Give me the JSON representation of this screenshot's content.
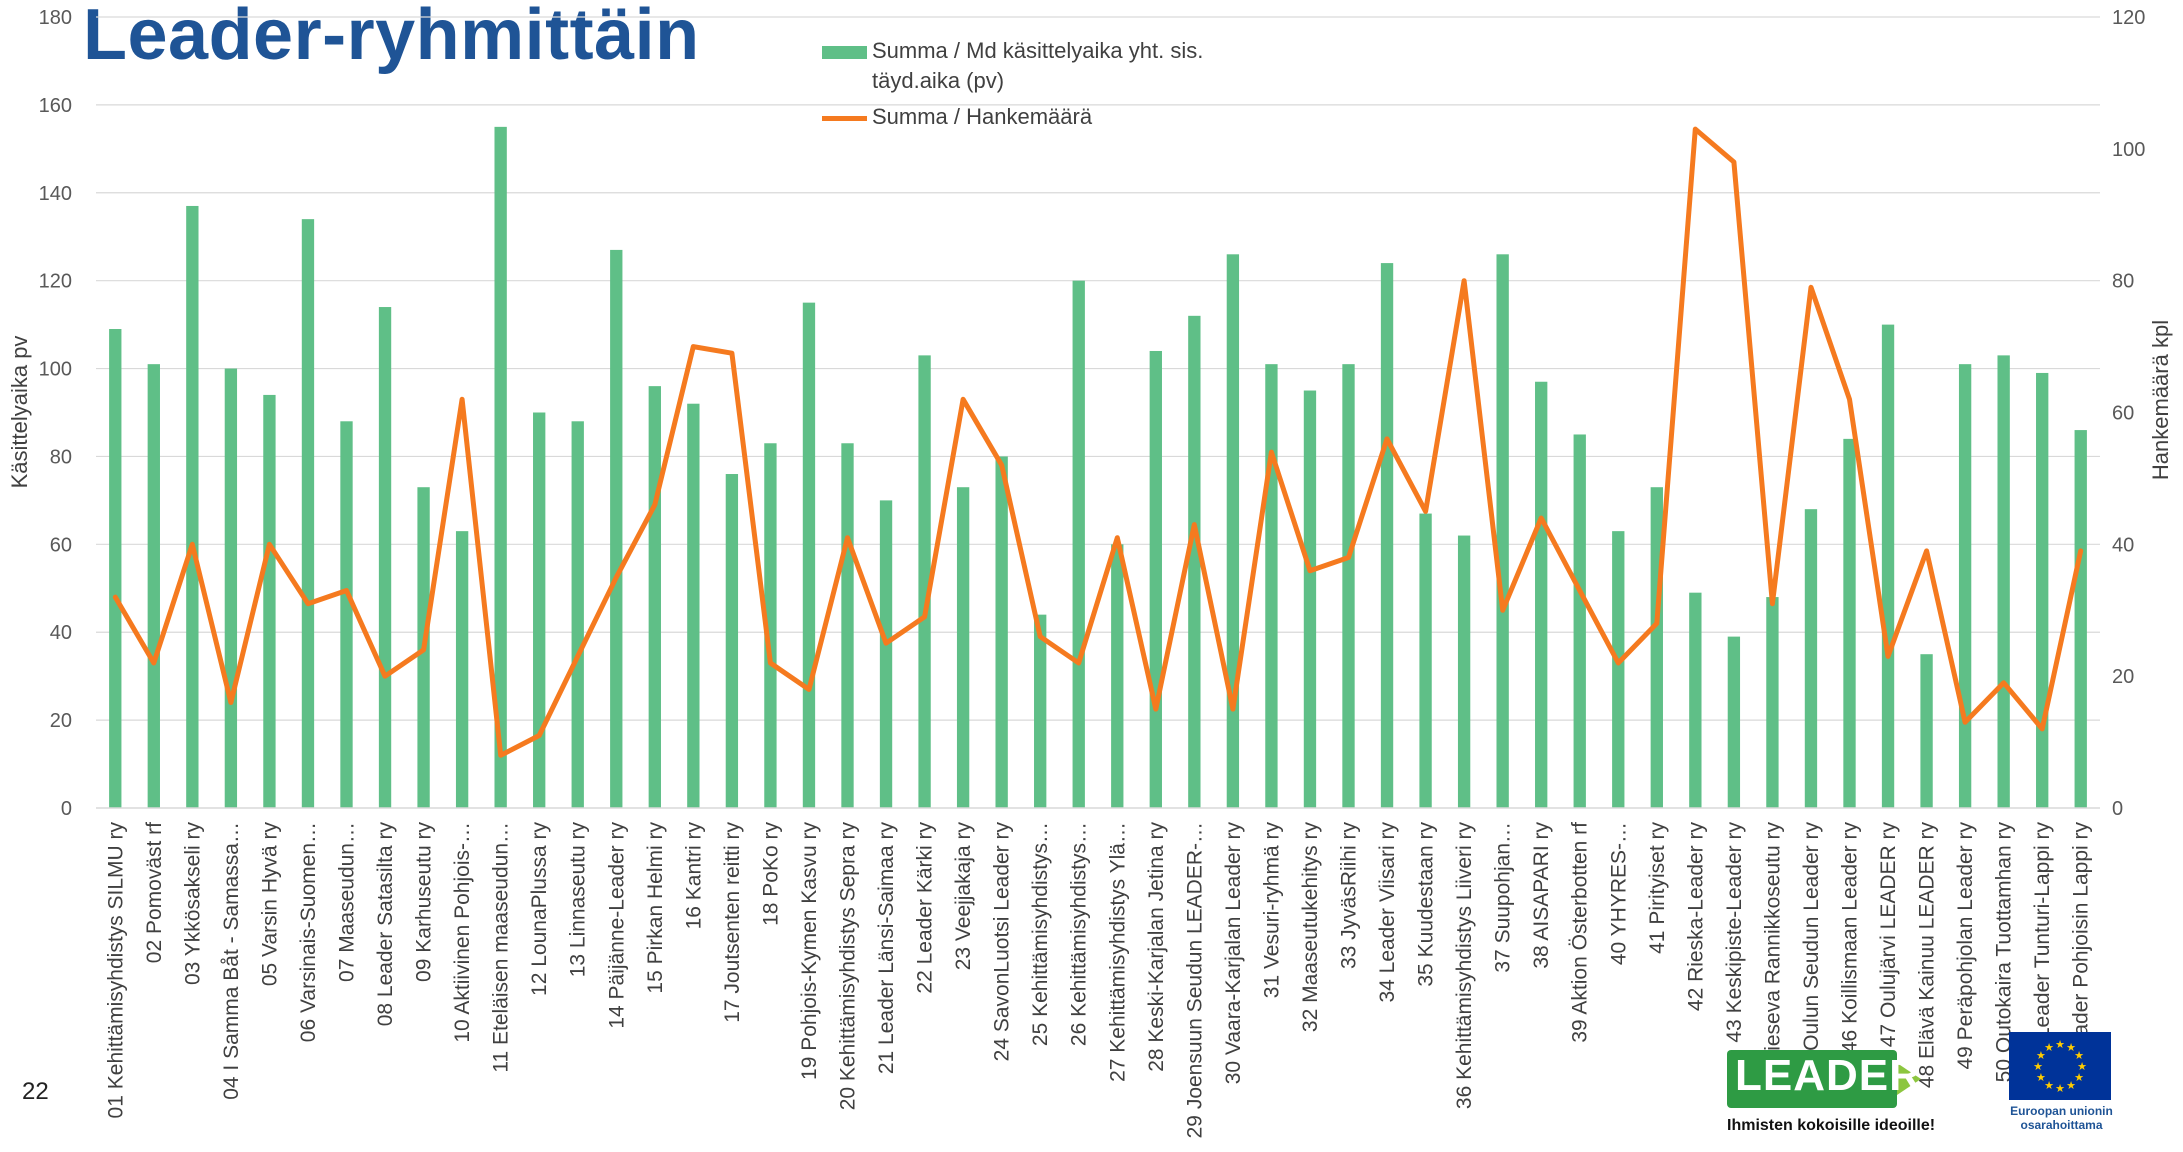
{
  "slide": {
    "title": "Leader-ryhmittäin",
    "page_number": "22",
    "leader_logo": {
      "word": "LEADER",
      "tagline": "Ihmisten kokoisille ideoille!",
      "color": "#2e9b44"
    },
    "eu_logo": {
      "caption_line1": "Euroopan unionin",
      "caption_line2": "osarahoittama",
      "color": "#003399"
    }
  },
  "chart_data": {
    "type": "bar",
    "title": "",
    "y_left_label": "Käsittelyaika pv",
    "y_right_label": "Hankemäärä kpl",
    "ylim_left": [
      0,
      180
    ],
    "ylim_right": [
      0,
      120
    ],
    "yticks_left": [
      0,
      20,
      40,
      60,
      80,
      100,
      120,
      140,
      160,
      180
    ],
    "yticks_right": [
      0,
      20,
      40,
      60,
      80,
      100,
      120
    ],
    "grid": true,
    "legend_position": "top-center",
    "categories": [
      "01 Kehittämisyhdistys SILMU ry",
      "02 Pomoväst rf",
      "03 Ykkösakseli ry",
      "04 I Samma Båt - Samassa…",
      "05 Varsin Hyvä ry",
      "06 Varsinais-Suomen…",
      "07 Maaseudun…",
      "08 Leader Satasilta ry",
      "09 Karhuseutu ry",
      "10 Aktiivinen Pohjois-…",
      "11 Eteläisen maaseudun…",
      "12 LounaPlussa ry",
      "13 Linnaseutu ry",
      "14 Päijänne-Leader ry",
      "15 Pirkan Helmi ry",
      "16 Kantri ry",
      "17 Joutsenten reitti ry",
      "18 PoKo ry",
      "19 Pohjois-Kymen Kasvu ry",
      "20 Kehittämisyhdistys Sepra ry",
      "21 Leader Länsi-Saimaa ry",
      "22 Leader Kärki ry",
      "23 Veejjakaja ry",
      "24 SavonLuotsi Leader ry",
      "25 Kehittämisyhdistys…",
      "26 Kehittämisyhdistys…",
      "27 Kehittämisyhdistys Ylä…",
      "28 Keski-Karjalan Jetina ry",
      "29 Joensuun Seudun LEADER-…",
      "30 Vaara-Karjalan Leader ry",
      "31 Vesuri-ryhmä ry",
      "32 Maaseutukehitys ry",
      "33 JyväsRiihi ry",
      "34 Leader Viisari ry",
      "35 Kuudestaan ry",
      "36 Kehittämisyhdistys Liiveri ry",
      "37 Suupohjan…",
      "38 AISAPARI ry",
      "39 Aktion Österbotten rf",
      "40 YHYRES-…",
      "41 Pirityiset ry",
      "42 Rieska-Leader ry",
      "43 Keskipiste-Leader ry",
      "44 Rieseva Rannikkoseutu ry",
      "45 Oulun Seudun Leader ry",
      "46 Koillismaan Leader ry",
      "47 Oulujärvi LEADER ry",
      "48 Elävä Kainuu LEADER ry",
      "49 Peräpohjolan Leader ry",
      "50 Outokaira Tuottamhan ry",
      "51 Leader Tunturi-Lappi ry",
      "52 Leader Pohjoisin Lappi ry"
    ],
    "series": [
      {
        "name": "Summa  / Md käsittelyaika yht. sis. täyd.aika (pv)",
        "kind": "bar",
        "axis": "left",
        "color": "#5fbf87",
        "values": [
          109,
          101,
          137,
          100,
          94,
          134,
          88,
          114,
          73,
          63,
          155,
          90,
          88,
          127,
          96,
          92,
          76,
          83,
          115,
          83,
          70,
          103,
          73,
          80,
          44,
          120,
          60,
          104,
          112,
          126,
          101,
          95,
          101,
          124,
          67,
          62,
          126,
          97,
          85,
          63,
          73,
          49,
          39,
          48,
          68,
          84,
          110,
          35,
          101,
          103,
          99,
          86
        ]
      },
      {
        "name": "Summa  / Hankemäärä",
        "kind": "line",
        "axis": "right",
        "color": "#f57a1f",
        "values": [
          32,
          22,
          40,
          16,
          40,
          31,
          33,
          20,
          24,
          62,
          8,
          11,
          23,
          35,
          46,
          70,
          69,
          22,
          18,
          41,
          25,
          29,
          62,
          52,
          26,
          22,
          41,
          15,
          43,
          15,
          54,
          36,
          38,
          56,
          45,
          80,
          30,
          44,
          33,
          22,
          28,
          103,
          98,
          31,
          79,
          62,
          23,
          39,
          13,
          19,
          12,
          39
        ]
      }
    ]
  }
}
